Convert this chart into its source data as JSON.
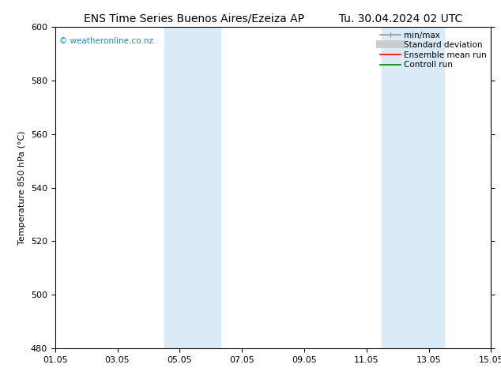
{
  "title_left": "ENS Time Series Buenos Aires/Ezeiza AP",
  "title_right": "Tu. 30.04.2024 02 UTC",
  "ylabel": "Temperature 850 hPa (°C)",
  "watermark": "© weatheronline.co.nz",
  "ylim": [
    480,
    600
  ],
  "yticks": [
    480,
    500,
    520,
    540,
    560,
    580,
    600
  ],
  "xtick_labels": [
    "01.05",
    "03.05",
    "05.05",
    "07.05",
    "09.05",
    "11.05",
    "13.05",
    "15.05"
  ],
  "xtick_positions": [
    0,
    2,
    4,
    6,
    8,
    10,
    12,
    14
  ],
  "xlim": [
    0,
    14
  ],
  "shade_bands": [
    {
      "x_start": 3.5,
      "x_end": 5.3,
      "color": "#daeaf7"
    },
    {
      "x_start": 10.5,
      "x_end": 12.5,
      "color": "#daeaf7"
    }
  ],
  "legend_entries": [
    {
      "label": "min/max",
      "color": "#999999",
      "linestyle": "-",
      "linewidth": 1.2
    },
    {
      "label": "Standard deviation",
      "color": "#cccccc",
      "linestyle": "-",
      "linewidth": 7
    },
    {
      "label": "Ensemble mean run",
      "color": "#ff0000",
      "linestyle": "-",
      "linewidth": 1.2
    },
    {
      "label": "Controll run",
      "color": "#008800",
      "linestyle": "-",
      "linewidth": 1.2
    }
  ],
  "bg_color": "#ffffff",
  "plot_bg_color": "#ffffff",
  "border_color": "#000000",
  "title_fontsize": 10,
  "tick_fontsize": 8,
  "ylabel_fontsize": 8,
  "watermark_color": "#2288cc",
  "watermark_fontsize": 7.5,
  "legend_fontsize": 7.5
}
